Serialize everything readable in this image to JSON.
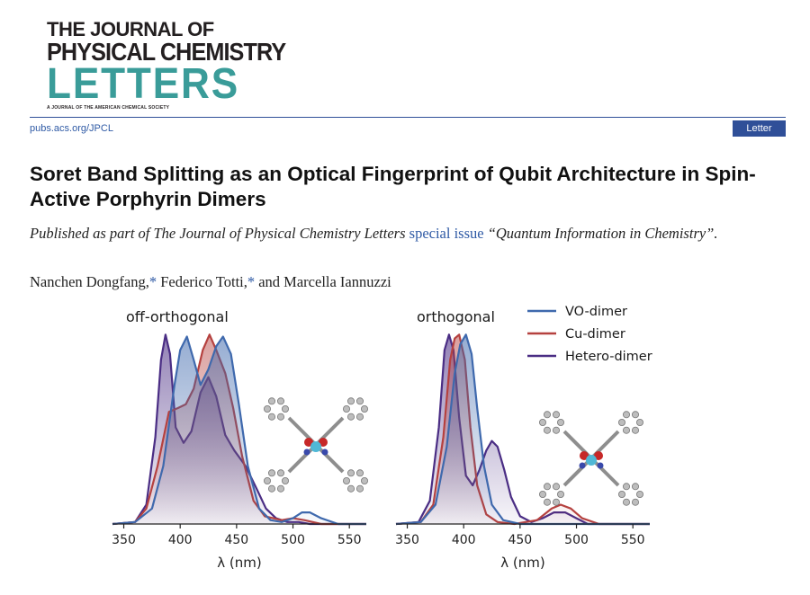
{
  "journal": {
    "line1": "THE JOURNAL OF",
    "line2": "PHYSICAL CHEMISTRY",
    "line3": "LETTERS",
    "tagline": "A JOURNAL OF THE AMERICAN CHEMICAL SOCIETY",
    "url": "pubs.acs.org/JPCL",
    "article_type": "Letter"
  },
  "colors": {
    "brand_blue": "#2f4f98",
    "logo_teal": "#3a9c99",
    "link_blue": "#2f5aa5"
  },
  "article": {
    "title": "Soret Band Splitting as an Optical Fingerprint of Qubit Architecture in Spin-Active Porphyrin Dimers",
    "published_prefix": "Published as part of The Journal of Physical Chemistry Letters ",
    "published_link": "special issue",
    "published_suffix": " “Quantum Information in Chemistry”.",
    "authors": [
      {
        "name": "Nanchen Dongfang,",
        "mark": "*"
      },
      {
        "name": "Federico Totti,",
        "mark": "*"
      },
      {
        "name": "and Marcella Iannuzzi",
        "mark": ""
      }
    ]
  },
  "chart_data": [
    {
      "type": "area",
      "title": "off-orthogonal",
      "xlabel": "λ (nm)",
      "xlim": [
        340,
        565
      ],
      "xticks": [
        350,
        400,
        450,
        500,
        550
      ],
      "series": [
        {
          "name": "VO-dimer",
          "color": "#3f69ad",
          "x": [
            340,
            360,
            375,
            385,
            395,
            400,
            406,
            412,
            418,
            425,
            432,
            438,
            445,
            452,
            460,
            470,
            480,
            490,
            500,
            508,
            515,
            525,
            540,
            565
          ],
          "y": [
            0,
            0.01,
            0.08,
            0.3,
            0.72,
            0.9,
            0.97,
            0.85,
            0.72,
            0.8,
            0.92,
            0.97,
            0.88,
            0.62,
            0.3,
            0.08,
            0.02,
            0.01,
            0.03,
            0.06,
            0.06,
            0.03,
            0.0,
            0
          ]
        },
        {
          "name": "Cu-dimer",
          "color": "#b5413f",
          "x": [
            340,
            360,
            370,
            380,
            390,
            398,
            405,
            412,
            420,
            426,
            432,
            440,
            447,
            455,
            465,
            475,
            490,
            500,
            510,
            525,
            540,
            565
          ],
          "y": [
            0,
            0.01,
            0.08,
            0.3,
            0.58,
            0.6,
            0.62,
            0.7,
            0.9,
            0.98,
            0.9,
            0.78,
            0.6,
            0.35,
            0.12,
            0.04,
            0.02,
            0.03,
            0.02,
            0.0,
            0.0,
            0
          ]
        },
        {
          "name": "Hetero-dimer",
          "color": "#4a2d84",
          "x": [
            340,
            360,
            370,
            378,
            383,
            387,
            391,
            396,
            403,
            410,
            418,
            425,
            432,
            440,
            448,
            458,
            468,
            476,
            485,
            495,
            505,
            515,
            530,
            565
          ],
          "y": [
            0,
            0.01,
            0.1,
            0.45,
            0.85,
            0.98,
            0.88,
            0.5,
            0.42,
            0.48,
            0.68,
            0.76,
            0.66,
            0.46,
            0.38,
            0.3,
            0.18,
            0.08,
            0.03,
            0.01,
            0.01,
            0.0,
            0.0,
            0
          ]
        }
      ]
    },
    {
      "type": "area",
      "title": "orthogonal",
      "xlabel": "λ (nm)",
      "xlim": [
        340,
        565
      ],
      "xticks": [
        350,
        400,
        450,
        500,
        550
      ],
      "legend": "top-right",
      "series": [
        {
          "name": "VO-dimer",
          "color": "#3f69ad",
          "x": [
            340,
            362,
            375,
            385,
            392,
            397,
            402,
            407,
            412,
            418,
            425,
            435,
            450,
            480,
            500,
            565
          ],
          "y": [
            0,
            0.01,
            0.1,
            0.4,
            0.78,
            0.93,
            0.98,
            0.88,
            0.6,
            0.3,
            0.1,
            0.02,
            0.0,
            0.0,
            0.0,
            0
          ]
        },
        {
          "name": "Cu-dimer",
          "color": "#b5413f",
          "x": [
            340,
            362,
            373,
            382,
            388,
            392,
            396,
            401,
            406,
            412,
            420,
            430,
            445,
            465,
            478,
            486,
            495,
            505,
            520,
            565
          ],
          "y": [
            0,
            0.01,
            0.1,
            0.45,
            0.85,
            0.96,
            0.98,
            0.85,
            0.5,
            0.2,
            0.05,
            0.01,
            0.0,
            0.02,
            0.08,
            0.1,
            0.08,
            0.03,
            0.0,
            0
          ]
        },
        {
          "name": "Hetero-dimer",
          "color": "#4a2d84",
          "x": [
            340,
            360,
            370,
            378,
            383,
            387,
            391,
            396,
            402,
            408,
            414,
            420,
            425,
            430,
            436,
            442,
            450,
            460,
            470,
            480,
            490,
            500,
            510,
            565
          ],
          "y": [
            0,
            0.01,
            0.12,
            0.5,
            0.9,
            0.98,
            0.9,
            0.55,
            0.25,
            0.2,
            0.28,
            0.38,
            0.43,
            0.4,
            0.28,
            0.14,
            0.04,
            0.01,
            0.03,
            0.06,
            0.06,
            0.03,
            0.0,
            0
          ]
        }
      ]
    }
  ]
}
